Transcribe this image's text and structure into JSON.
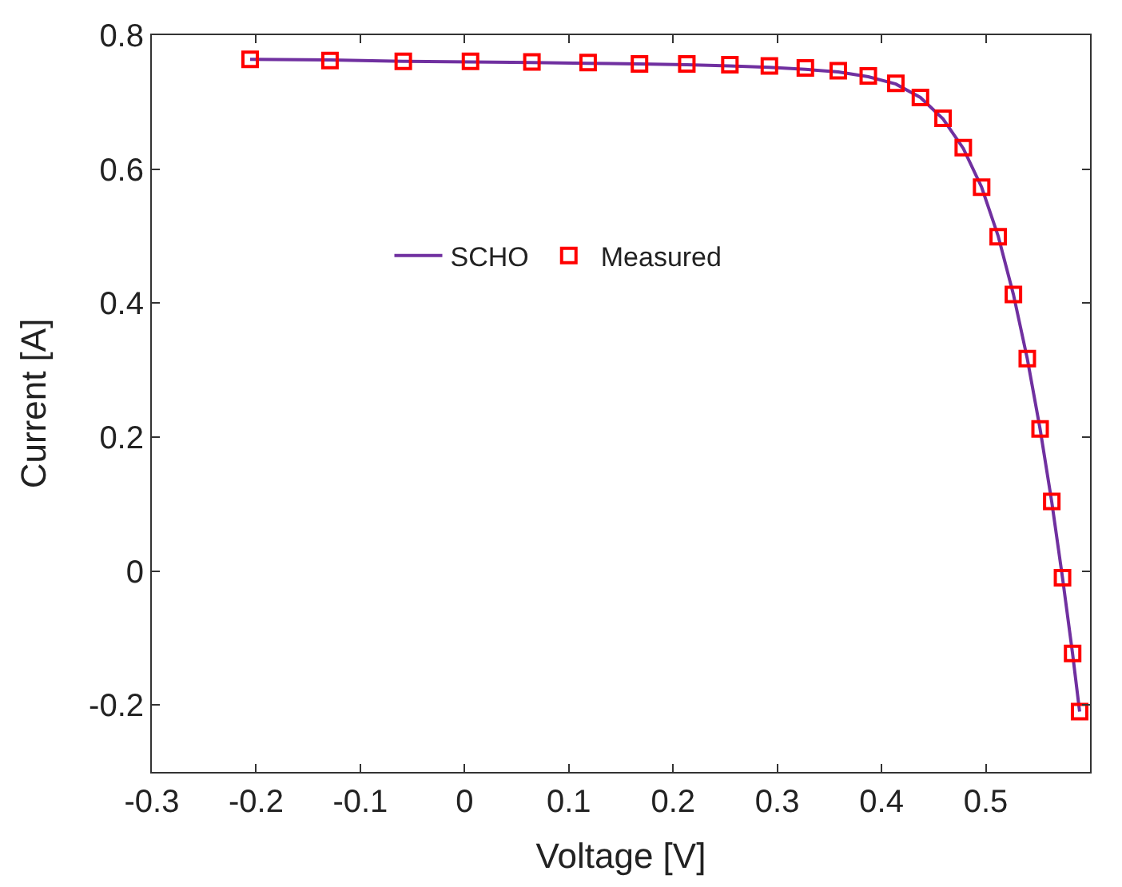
{
  "chart_data": {
    "type": "line",
    "xlabel": "Voltage [V]",
    "ylabel": "Current [A]",
    "x": [
      -0.2057,
      -0.1291,
      -0.0588,
      0.0057,
      0.0646,
      0.1185,
      0.1678,
      0.2132,
      0.2545,
      0.2924,
      0.3269,
      0.3585,
      0.3873,
      0.4137,
      0.4373,
      0.459,
      0.4784,
      0.496,
      0.5119,
      0.5265,
      0.5398,
      0.5521,
      0.5633,
      0.5736,
      0.5833,
      0.59
    ],
    "series": [
      {
        "name": "SCHO",
        "color": "#7030a0",
        "marker": "none",
        "line_style": "solid",
        "values": [
          0.764,
          0.763,
          0.761,
          0.76,
          0.759,
          0.758,
          0.757,
          0.756,
          0.754,
          0.752,
          0.749,
          0.745,
          0.738,
          0.727,
          0.707,
          0.675,
          0.631,
          0.573,
          0.5,
          0.413,
          0.317,
          0.212,
          0.103,
          -0.01,
          -0.124,
          -0.21
        ]
      },
      {
        "name": "Measured",
        "type": "scatter",
        "color": "#ff0000",
        "marker": "square",
        "values": [
          0.764,
          0.762,
          0.761,
          0.761,
          0.76,
          0.759,
          0.757,
          0.757,
          0.756,
          0.754,
          0.751,
          0.747,
          0.739,
          0.728,
          0.707,
          0.676,
          0.632,
          0.573,
          0.499,
          0.413,
          0.317,
          0.212,
          0.104,
          -0.01,
          -0.123,
          -0.21
        ]
      }
    ],
    "xlim": [
      -0.3,
      0.6
    ],
    "xticks": [
      -0.3,
      -0.2,
      -0.1,
      0,
      0.1,
      0.2,
      0.3,
      0.4,
      0.5
    ],
    "ylim": [
      -0.3,
      0.8
    ],
    "yticks": [
      -0.2,
      0,
      0.2,
      0.4,
      0.6,
      0.8
    ],
    "legend": "center"
  }
}
